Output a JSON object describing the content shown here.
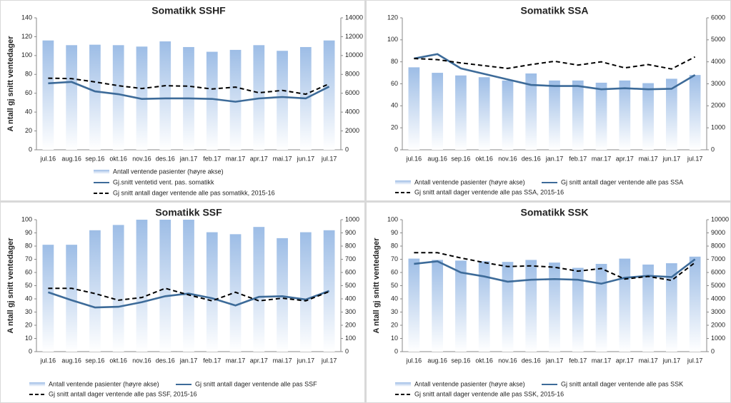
{
  "chart_data": [
    {
      "type": "bar-line",
      "title": "Somatikk SSHF",
      "ylabel": "A ntall gj snitt ventedager",
      "categories": [
        "jul.16",
        "aug.16",
        "sep.16",
        "okt.16",
        "nov.16",
        "des.16",
        "jan.17",
        "feb.17",
        "mar.17",
        "apr.17",
        "mai.17",
        "jun.17",
        "jul.17"
      ],
      "ylim": [
        0,
        140
      ],
      "yticks": [
        0,
        20,
        40,
        60,
        80,
        100,
        120,
        140
      ],
      "y2lim": [
        0,
        14000
      ],
      "y2ticks": [
        0,
        2000,
        4000,
        6000,
        8000,
        10000,
        12000,
        14000
      ],
      "series": [
        {
          "name": "Antall ventende pasienter (høyre akse)",
          "kind": "bar",
          "axis": "y2",
          "color": "#9dbde6",
          "values": [
            11600,
            11100,
            11150,
            11100,
            10950,
            11500,
            10900,
            10400,
            10600,
            11100,
            10500,
            10900,
            11600
          ]
        },
        {
          "name": "Gj.snitt ventetid vent. pas. somatikk",
          "kind": "line",
          "color": "#3d6b99",
          "values": [
            70.5,
            72,
            62,
            59,
            54,
            54.5,
            54.5,
            54,
            51,
            54.5,
            56,
            54.5,
            67
          ]
        },
        {
          "name": "Gj snitt antall dager ventende alle pas somatikk, 2015-16",
          "kind": "dashed",
          "color": "#000000",
          "values": [
            76,
            75.5,
            72,
            68,
            65,
            68,
            67.5,
            64.5,
            66.5,
            60.5,
            63,
            59,
            70
          ]
        }
      ]
    },
    {
      "type": "bar-line",
      "title": "Somatikk SSA",
      "categories": [
        "jul.16",
        "aug.16",
        "sep.16",
        "okt.16",
        "nov.16",
        "des.16",
        "jan.17",
        "feb.17",
        "mar.17",
        "apr.17",
        "mai.17",
        "jun.17",
        "jul.17"
      ],
      "ylim": [
        0,
        120
      ],
      "yticks": [
        0,
        20,
        40,
        60,
        80,
        100,
        120
      ],
      "y2lim": [
        0,
        6000
      ],
      "y2ticks": [
        0,
        1000,
        2000,
        3000,
        4000,
        5000,
        6000
      ],
      "series": [
        {
          "name": "Antall ventende pasienter (høyre akse)",
          "kind": "bar",
          "axis": "y2",
          "color": "#9dbde6",
          "values": [
            3750,
            3500,
            3380,
            3300,
            3150,
            3470,
            3150,
            3150,
            3050,
            3150,
            3030,
            3230,
            3400
          ]
        },
        {
          "name": "Gj snitt antall dager ventende alle pas SSA",
          "kind": "line",
          "color": "#3d6b99",
          "values": [
            83,
            87,
            74,
            69,
            64,
            59,
            58,
            58,
            55,
            56,
            55,
            55.5,
            68
          ]
        },
        {
          "name": "Gj snitt antall dager ventende alle pas SSA, 2015-16",
          "kind": "dashed",
          "color": "#000000",
          "values": [
            83,
            82,
            79,
            76.5,
            74,
            77.5,
            80.5,
            77,
            80,
            74.5,
            77.5,
            73.5,
            84.5
          ]
        }
      ]
    },
    {
      "type": "bar-line",
      "title": "Somatikk SSF",
      "ylabel": "A ntall gj snitt ventedager",
      "categories": [
        "jul.16",
        "aug.16",
        "sep.16",
        "okt.16",
        "nov.16",
        "des.16",
        "jan.17",
        "feb.17",
        "mar.17",
        "apr.17",
        "mai.17",
        "jun.17",
        "jul.17"
      ],
      "ylim": [
        0,
        100
      ],
      "yticks": [
        0,
        10,
        20,
        30,
        40,
        50,
        60,
        70,
        80,
        90,
        100
      ],
      "y2lim": [
        0,
        1000
      ],
      "y2ticks": [
        0,
        100,
        200,
        300,
        400,
        500,
        600,
        700,
        800,
        900,
        1000
      ],
      "series": [
        {
          "name": "Antall ventende pasienter (høyre akse)",
          "kind": "bar",
          "axis": "y2",
          "color": "#9dbde6",
          "values": [
            810,
            810,
            920,
            960,
            1000,
            1000,
            1000,
            905,
            890,
            945,
            860,
            905,
            920
          ]
        },
        {
          "name": "Gj snitt antall dager ventende alle pas SSF",
          "kind": "line",
          "color": "#3d6b99",
          "values": [
            45,
            39,
            33.5,
            34,
            37.5,
            42,
            44,
            40.5,
            35,
            41.5,
            42,
            39.5,
            46
          ]
        },
        {
          "name": "Gj snitt antall dager ventende alle pas SSF, 2015-16",
          "kind": "dashed",
          "color": "#000000",
          "values": [
            48,
            48,
            44,
            39,
            41,
            48,
            43,
            38.5,
            45,
            38.5,
            40.5,
            38.5,
            45.5
          ]
        }
      ]
    },
    {
      "type": "bar-line",
      "title": "Somatikk SSK",
      "ylabel": "A ntall gj snitt ventedager",
      "categories": [
        "jul.16",
        "aug.16",
        "sep.16",
        "okt.16",
        "nov.16",
        "des.16",
        "jan.17",
        "feb.17",
        "mar.17",
        "apr.17",
        "mai.17",
        "jun.17",
        "jul.17"
      ],
      "ylim": [
        0,
        100
      ],
      "yticks": [
        0,
        10,
        20,
        30,
        40,
        50,
        60,
        70,
        80,
        90,
        100
      ],
      "y2lim": [
        0,
        10000
      ],
      "y2ticks": [
        0,
        1000,
        2000,
        3000,
        4000,
        5000,
        6000,
        7000,
        8000,
        9000,
        10000
      ],
      "series": [
        {
          "name": "Antall ventende pasienter (høyre akse)",
          "kind": "bar",
          "axis": "y2",
          "color": "#9dbde6",
          "values": [
            7050,
            6950,
            6900,
            6850,
            6800,
            6950,
            6750,
            6350,
            6650,
            7050,
            6600,
            6700,
            7200
          ]
        },
        {
          "name": "Gj snitt antall dager ventende alle pas SSK",
          "kind": "line",
          "color": "#3d6b99",
          "values": [
            66.5,
            68.5,
            60,
            57,
            53,
            54.5,
            55,
            54.5,
            51.5,
            56,
            57.5,
            56.5,
            70
          ]
        },
        {
          "name": "Gj snitt antall dager ventende alle pas SSK, 2015-16",
          "kind": "dashed",
          "color": "#000000",
          "values": [
            75,
            75,
            71,
            67.5,
            64.5,
            65,
            64,
            61,
            63,
            55,
            57,
            54,
            67.5
          ]
        }
      ]
    }
  ]
}
